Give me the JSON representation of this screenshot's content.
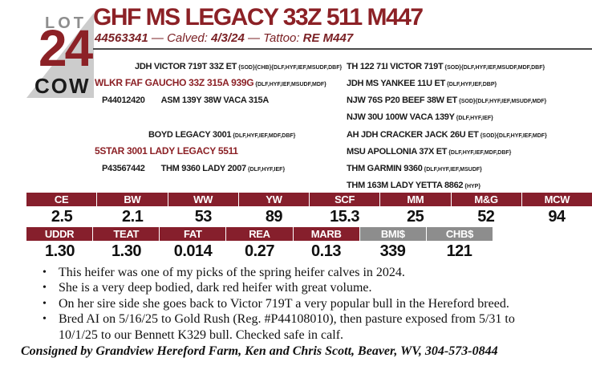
{
  "colors": {
    "maroon_title": "#8c2126",
    "maroon_bar": "#861f2c",
    "gray_bar": "#8d8d8d",
    "lot_gray": "#8e8e8e",
    "triangle_gray": "#cccccc",
    "text": "#111111"
  },
  "lot": {
    "label": "LOT",
    "number": "24",
    "sex": "COW"
  },
  "header": {
    "title": "GHF MS LEGACY 33Z 511 M447",
    "reg": "44563341",
    "calved_label": " — Calved: ",
    "calved": "4/3/24",
    "tattoo_label": " — Tattoo: ",
    "tattoo": "RE M447"
  },
  "pedigree": {
    "sire": {
      "grandsire_name": "JDH VICTOR 719T 33Z ET",
      "grandsire_suffix": "{SOD}{CHB}{DLF,HYF,IEF,MSUDF,DBF}",
      "name": "WLKR FAF GAUCHO 33Z 315A 939G",
      "name_suffix": "{DLF,HYF,IEF,MSUDF,MDF}",
      "reg": "P44012420",
      "granddam_name": "ASM 139Y 38W VACA 315A",
      "granddam_suffix": ""
    },
    "sire_ancestors": [
      {
        "name": "TH 122 71I VICTOR 719T",
        "suffix": "{SOD}{DLF,HYF,IEF,MSUDF,MDF,DBF}"
      },
      {
        "name": "JDH MS YANKEE 11U ET",
        "suffix": "{DLF,HYF,IEF,DBP}"
      },
      {
        "name": "NJW 76S P20 BEEF 38W ET",
        "suffix": "{SOD}{DLF,HYF,IEF,MSUDF,MDF}"
      },
      {
        "name": "NJW 30U 100W VACA 139Y",
        "suffix": "{DLF,HYF,IEF}"
      }
    ],
    "dam": {
      "grandsire_name": "BOYD LEGACY 3001",
      "grandsire_suffix": "{DLF,HYF,IEF,MDF,DBF}",
      "name": "5STAR 3001 LADY LEGACY 5511",
      "name_suffix": "",
      "reg": "P43567442",
      "granddam_name": "THM 9360 LADY 2007",
      "granddam_suffix": "{DLF,HYF,IEF}"
    },
    "dam_ancestors": [
      {
        "name": "AH JDH CRACKER JACK 26U ET",
        "suffix": "{SOD}{DLF,HYF,IEF,MDF}"
      },
      {
        "name": "MSU APOLLONIA 37X ET",
        "suffix": "{DLF,HYF,IEF,MDF,DBF}"
      },
      {
        "name": "THM GARMIN 9360",
        "suffix": "{DLF,HYF,IEF,MSUDF}"
      },
      {
        "name": "THM 163M LADY YETTA 8862",
        "suffix": "{HYP}"
      }
    ]
  },
  "epd": {
    "row1": {
      "headers": [
        "CE",
        "BW",
        "WW",
        "YW",
        "SCF",
        "MM",
        "M&G",
        "MCW"
      ],
      "values": [
        "2.5",
        "2.1",
        "53",
        "89",
        "15.3",
        "25",
        "52",
        "94"
      ]
    },
    "row2": {
      "headers": [
        "UDDR",
        "TEAT",
        "FAT",
        "REA",
        "MARB",
        "BMI$",
        "CHB$"
      ],
      "values": [
        "1.30",
        "1.30",
        "0.014",
        "0.27",
        "0.13",
        "339",
        "121"
      ]
    }
  },
  "notes": [
    "This heifer was one of my picks of the spring heifer calves in 2024.",
    "She is a very deep bodied, dark red heifer with great volume.",
    "On her sire side she goes back to Victor 719T a very popular bull in the Hereford breed.",
    "Bred AI on 5/16/25 to Gold Rush (Reg. #P44108010), then pasture exposed from 5/31 to 10/1/25 to our Bennett K329 bull. Checked safe in calf."
  ],
  "footer": {
    "consigned": "Consigned by Grandview Hereford Farm, Ken and Chris Scott, Beaver, WV, 304-573-0844"
  }
}
